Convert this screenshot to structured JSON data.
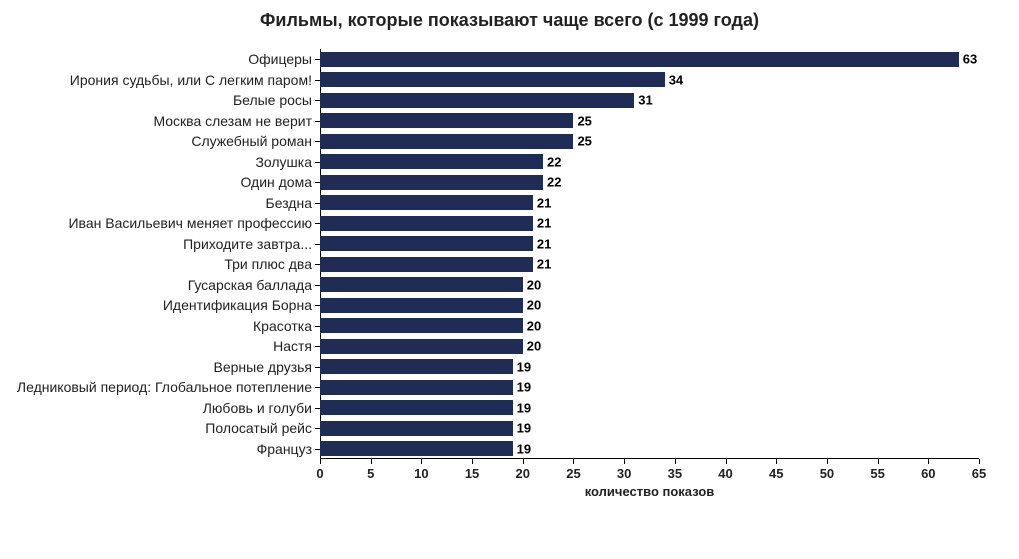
{
  "chart": {
    "type": "bar-horizontal",
    "title": "Фильмы, которые показывают чаще всего (с 1999 года)",
    "title_fontsize": 18,
    "title_color": "#222222",
    "background_color": "#ffffff",
    "bar_color": "#1f2c56",
    "bar_gap_ratio": 0.25,
    "value_label_fontsize": 13,
    "value_label_fontweight": "bold",
    "value_label_color": "#000000",
    "ylabel_fontsize": 14,
    "ylabel_color": "#222222",
    "axis_line_color": "#000000",
    "x_axis": {
      "min": 0,
      "max": 65,
      "tick_step": 5,
      "tick_fontsize": 13,
      "tick_fontweight": "bold",
      "label": "количество показов",
      "label_fontsize": 13,
      "label_fontweight": "bold"
    },
    "categories": [
      "Офицеры",
      "Ирония судьбы, или С легким паром!",
      "Белые росы",
      "Москва слезам не верит",
      "Служебный роман",
      "Золушка",
      "Один дома",
      "Бездна",
      "Иван Васильевич меняет профессию",
      "Приходите завтра...",
      "Три плюс два",
      "Гусарская баллада",
      "Идентификация Борна",
      "Красотка",
      "Настя",
      "Верные друзья",
      "Ледниковый период: Глобальное потепление",
      "Любовь и голуби",
      "Полосатый рейс",
      "Француз"
    ],
    "values": [
      63,
      34,
      31,
      25,
      25,
      22,
      22,
      21,
      21,
      21,
      21,
      20,
      20,
      20,
      20,
      19,
      19,
      19,
      19,
      19
    ]
  }
}
